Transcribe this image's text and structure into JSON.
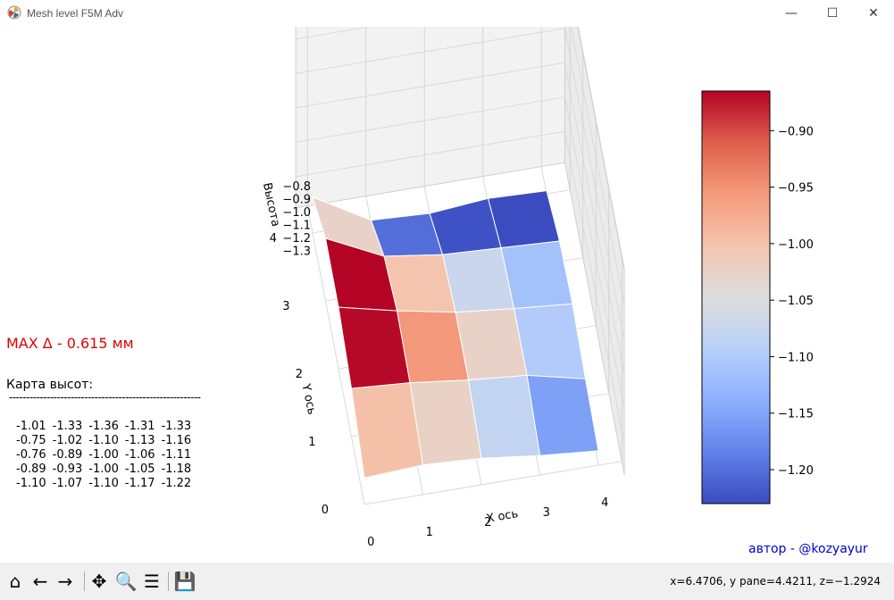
{
  "window": {
    "title": "Mesh level F5M Adv",
    "icon": "matplotlib-logo-icon",
    "controls": [
      "minimize",
      "maximize",
      "close"
    ]
  },
  "figure": {
    "title": "Mesh level F5M Adv",
    "max_delta": "MAX Δ - 0.615 мм",
    "map_label": "Карта высот:",
    "separator": "--------------------------------------------------------",
    "author": "автор - @kozyayur"
  },
  "height_map_text": [
    [
      "-1.01",
      "-1.33",
      "-1.36",
      "-1.31",
      "-1.33"
    ],
    [
      "-0.75",
      "-1.02",
      "-1.10",
      "-1.13",
      "-1.16"
    ],
    [
      "-0.76",
      "-0.89",
      "-1.00",
      "-1.06",
      "-1.11"
    ],
    [
      "-0.89",
      "-0.93",
      "-1.00",
      "-1.05",
      "-1.18"
    ],
    [
      "-1.10",
      "-1.07",
      "-1.10",
      "-1.17",
      "-1.22"
    ]
  ],
  "chart_data": {
    "type": "surface3d",
    "title": "Mesh level F5M Adv",
    "xlabel": "X ось",
    "ylabel": "Y ось",
    "zlabel": "Высота",
    "x": [
      0,
      1,
      2,
      3,
      4
    ],
    "y": [
      0,
      1,
      2,
      3,
      4
    ],
    "z": [
      [
        -1.1,
        -1.07,
        -1.1,
        -1.17,
        -1.22
      ],
      [
        -0.89,
        -0.93,
        -1.0,
        -1.05,
        -1.18
      ],
      [
        -0.76,
        -0.89,
        -1.0,
        -1.06,
        -1.11
      ],
      [
        -0.75,
        -1.02,
        -1.1,
        -1.13,
        -1.16
      ],
      [
        -1.01,
        -1.33,
        -1.36,
        -1.31,
        -1.33
      ]
    ],
    "x_ticks": [
      "0",
      "1",
      "2",
      "3",
      "4"
    ],
    "y_ticks": [
      "0",
      "1",
      "2",
      "3",
      "4"
    ],
    "z_ticks": [
      "−0.8",
      "−0.9",
      "−1.0",
      "−1.1",
      "−1.2",
      "−1.3"
    ],
    "colormap": "coolwarm",
    "colorbar": {
      "min": -1.23,
      "max": -0.865,
      "ticks": [
        "−0.90",
        "−0.95",
        "−1.00",
        "−1.05",
        "−1.10",
        "−1.15",
        "−1.20"
      ],
      "tick_values": [
        -0.9,
        -0.95,
        -1.0,
        -1.05,
        -1.1,
        -1.15,
        -1.2
      ]
    },
    "grid": true
  },
  "toolbar": {
    "buttons": [
      {
        "name": "home-icon",
        "glyph": "⌂"
      },
      {
        "name": "back-icon",
        "glyph": "←"
      },
      {
        "name": "forward-icon",
        "glyph": "→"
      },
      {
        "name": "pan-icon",
        "glyph": "✥"
      },
      {
        "name": "zoom-icon",
        "glyph": "🔍"
      },
      {
        "name": "configure-subplots-icon",
        "glyph": "☰"
      },
      {
        "name": "save-icon",
        "glyph": "💾"
      }
    ],
    "coords": "x=6.4706, y pane=4.4211, z=−1.2924"
  }
}
